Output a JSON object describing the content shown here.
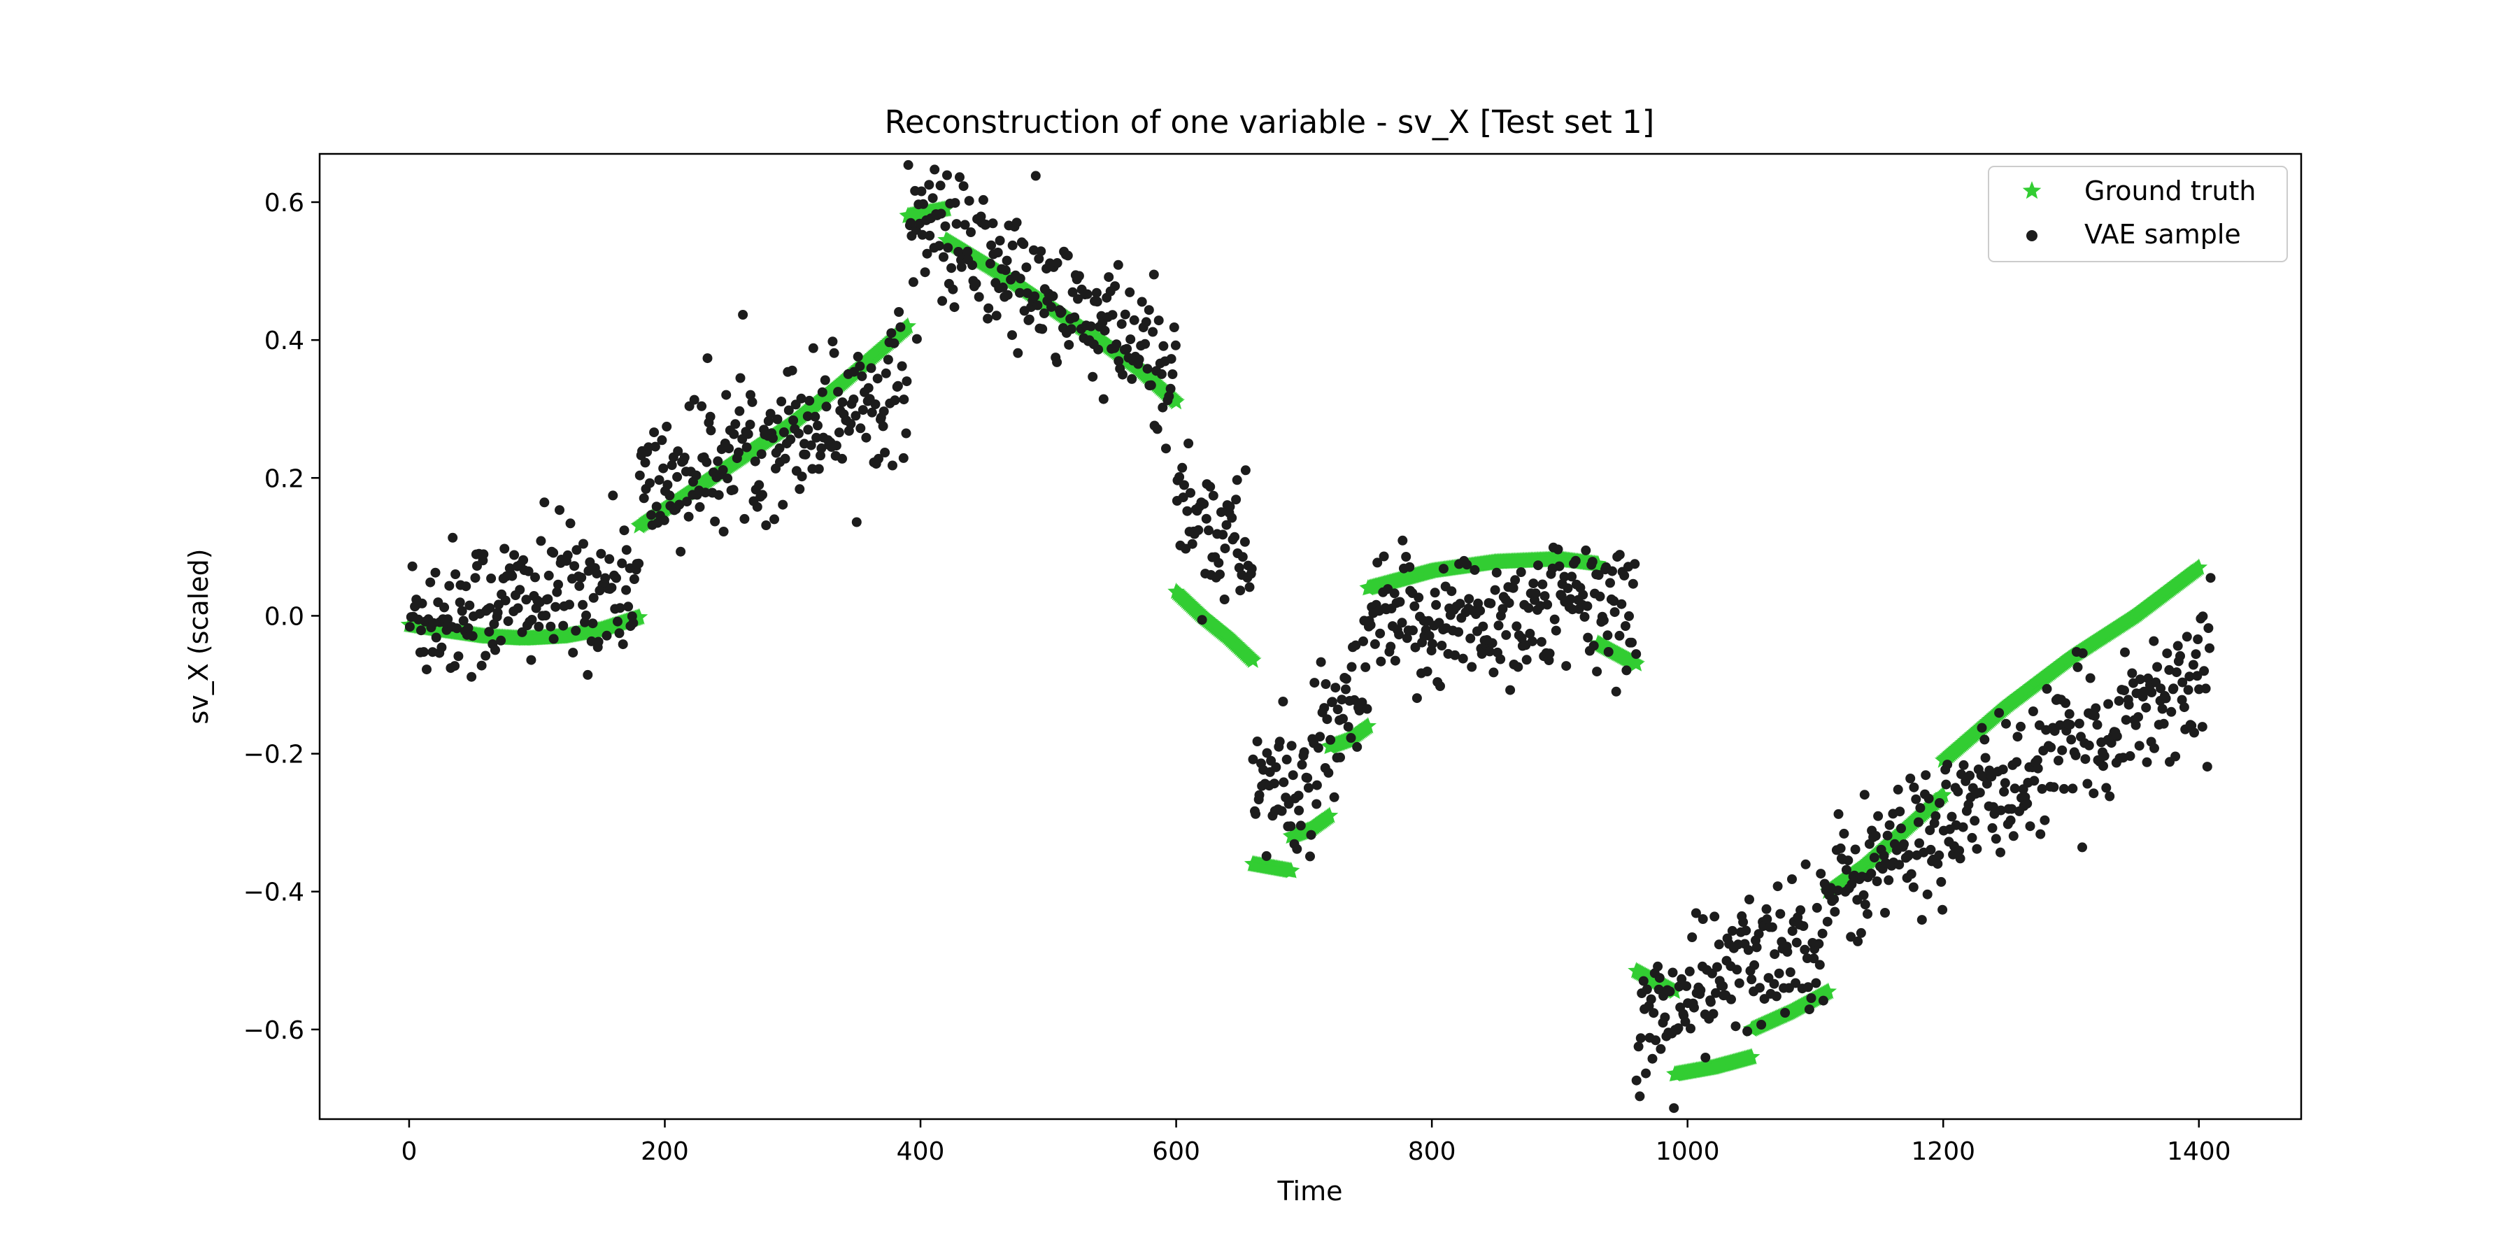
{
  "chart_data": {
    "type": "scatter",
    "title": "Reconstruction of one variable - sv_X [Test set 1]",
    "xlabel": "Time",
    "ylabel": "sv_X (scaled)",
    "xlim": [
      -70,
      1480
    ],
    "ylim": [
      -0.73,
      0.67
    ],
    "xticks": [
      0,
      200,
      400,
      600,
      800,
      1000,
      1200,
      1400
    ],
    "yticks": [
      -0.6,
      -0.4,
      -0.2,
      0.0,
      0.2,
      0.4,
      0.6
    ],
    "xtick_labels": [
      "0",
      "200",
      "400",
      "600",
      "800",
      "1000",
      "1200",
      "1400"
    ],
    "ytick_labels": [
      "−0.6",
      "−0.4",
      "−0.2",
      "0.0",
      "0.2",
      "0.4",
      "0.6"
    ],
    "grid": false,
    "legend": {
      "position": "top-right"
    },
    "series": [
      {
        "name": "Ground truth",
        "marker": "star",
        "color": "#32cd32",
        "segments": [
          {
            "x": [
              0,
              30,
              60,
              90,
              120,
              150,
              180
            ],
            "y": [
              -0.013,
              -0.022,
              -0.03,
              -0.033,
              -0.03,
              -0.02,
              -0.002
            ]
          },
          {
            "x": [
              180,
              220,
              260,
              300,
              340,
              390
            ],
            "y": [
              0.13,
              0.18,
              0.23,
              0.28,
              0.34,
              0.42
            ]
          },
          {
            "x": [
              390,
              405,
              420
            ],
            "y": [
              0.58,
              0.585,
              0.59
            ]
          },
          {
            "x": [
              420,
              460,
              500,
              540,
              570,
              600
            ],
            "y": [
              0.545,
              0.5,
              0.45,
              0.4,
              0.36,
              0.31
            ]
          },
          {
            "x": [
              600,
              620,
              640,
              660
            ],
            "y": [
              0.035,
              0.0,
              -0.03,
              -0.065
            ]
          },
          {
            "x": [
              660,
              675,
              690
            ],
            "y": [
              -0.36,
              -0.365,
              -0.37
            ]
          },
          {
            "x": [
              690,
              705,
              720
            ],
            "y": [
              -0.32,
              -0.31,
              -0.29
            ]
          },
          {
            "x": [
              720,
              735,
              750
            ],
            "y": [
              -0.19,
              -0.18,
              -0.16
            ]
          },
          {
            "x": [
              750,
              800,
              850,
              900,
              930
            ],
            "y": [
              0.04,
              0.065,
              0.078,
              0.082,
              0.075
            ]
          },
          {
            "x": [
              930,
              945,
              960
            ],
            "y": [
              -0.04,
              -0.055,
              -0.07
            ]
          },
          {
            "x": [
              960,
              975,
              990
            ],
            "y": [
              -0.515,
              -0.53,
              -0.545
            ]
          },
          {
            "x": [
              990,
              1020,
              1050
            ],
            "y": [
              -0.665,
              -0.655,
              -0.64
            ]
          },
          {
            "x": [
              1050,
              1080,
              1110
            ],
            "y": [
              -0.6,
              -0.575,
              -0.545
            ]
          },
          {
            "x": [
              1110,
              1140,
              1170,
              1200
            ],
            "y": [
              -0.4,
              -0.36,
              -0.31,
              -0.26
            ]
          },
          {
            "x": [
              1200,
              1250,
              1300,
              1350,
              1400
            ],
            "y": [
              -0.21,
              -0.13,
              -0.06,
              0.0,
              0.07
            ]
          }
        ]
      },
      {
        "name": "VAE sample",
        "marker": "circle",
        "color": "#1c1c1c",
        "noise_level": 0.032,
        "clusters": [
          {
            "x": [
              0,
              180
            ],
            "y": [
              0.0,
              0.05
            ]
          },
          {
            "x": [
              180,
              390
            ],
            "y": [
              0.18,
              0.34
            ]
          },
          {
            "x": [
              390,
              600
            ],
            "y": [
              0.58,
              0.35
            ]
          },
          {
            "x": [
              600,
              660
            ],
            "y": [
              0.17,
              0.08
            ]
          },
          {
            "x": [
              660,
              690
            ],
            "y": [
              -0.23,
              -0.27
            ]
          },
          {
            "x": [
              690,
              750
            ],
            "y": [
              -0.27,
              -0.1
            ]
          },
          {
            "x": [
              750,
              960
            ],
            "y": [
              -0.02,
              0.02
            ]
          },
          {
            "x": [
              960,
              1110
            ],
            "y": [
              -0.6,
              -0.44
            ]
          },
          {
            "x": [
              1110,
              1410
            ],
            "y": [
              -0.4,
              -0.07
            ]
          }
        ]
      }
    ]
  }
}
